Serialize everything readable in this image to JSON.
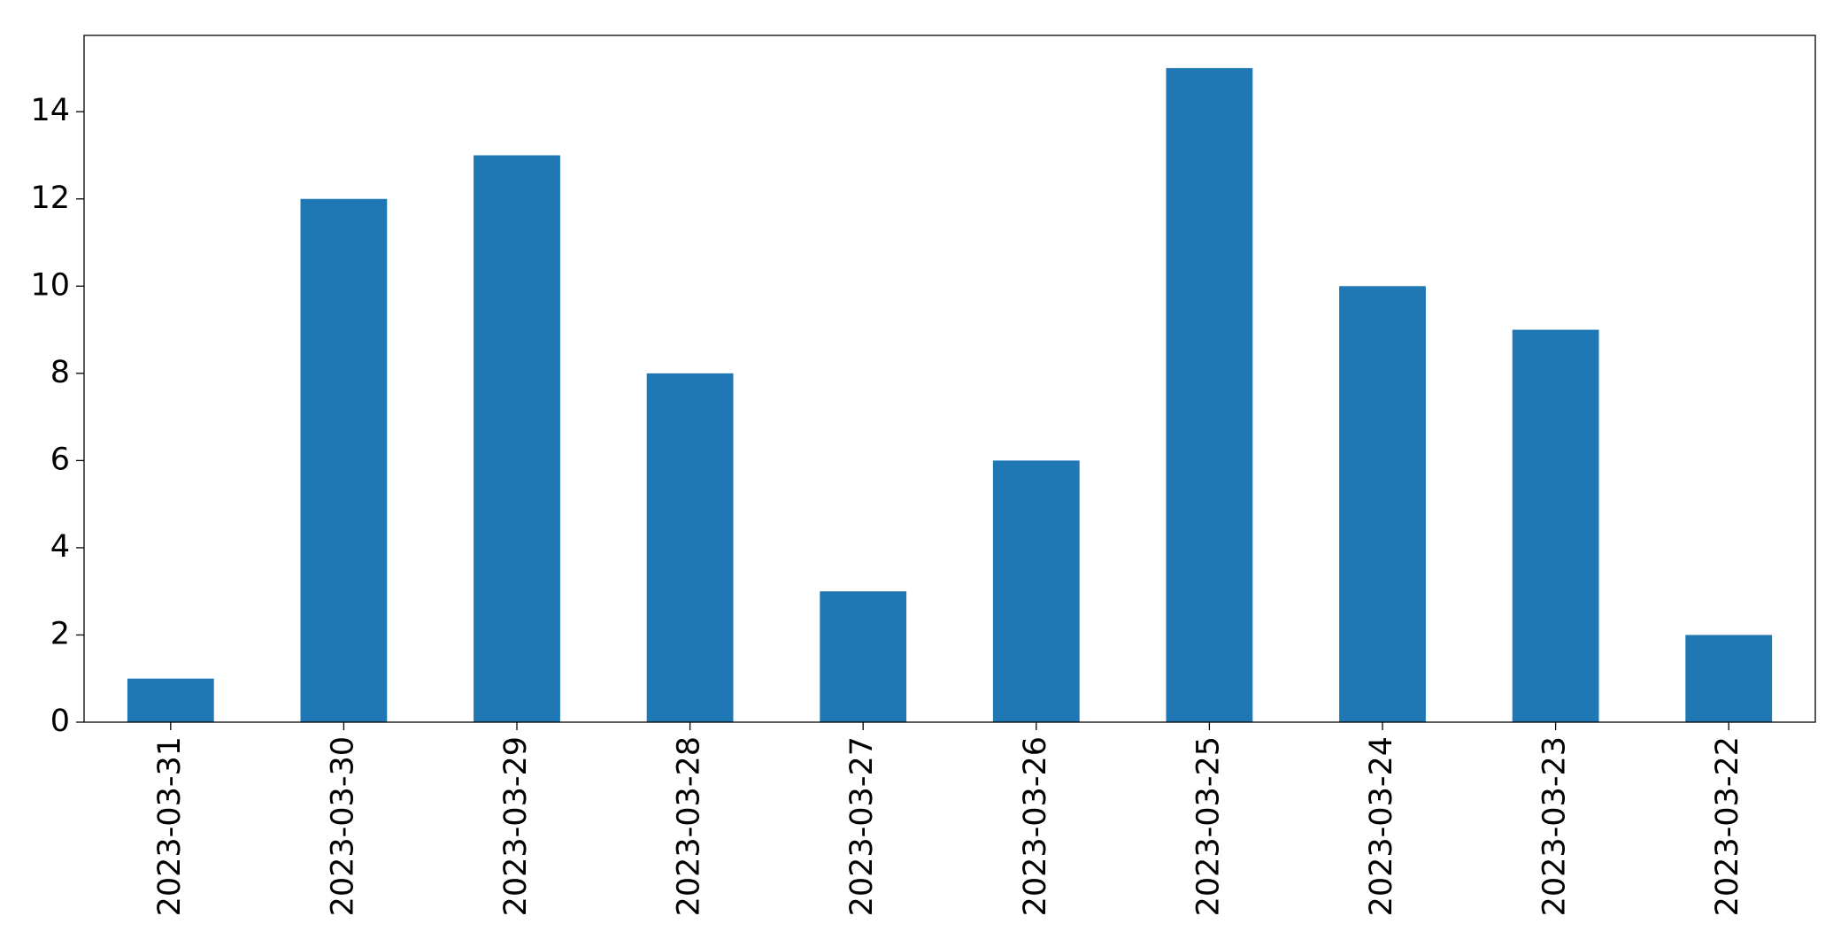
{
  "chart_data": {
    "type": "bar",
    "categories": [
      "2023-03-31",
      "2023-03-30",
      "2023-03-29",
      "2023-03-28",
      "2023-03-27",
      "2023-03-26",
      "2023-03-25",
      "2023-03-24",
      "2023-03-23",
      "2023-03-22"
    ],
    "values": [
      1,
      12,
      13,
      8,
      3,
      6,
      15,
      10,
      9,
      2
    ],
    "color": "#1f77b4",
    "ylim": [
      0,
      15.75
    ],
    "yticks": [
      0,
      2,
      4,
      6,
      8,
      10,
      12,
      14
    ],
    "grid": false
  }
}
